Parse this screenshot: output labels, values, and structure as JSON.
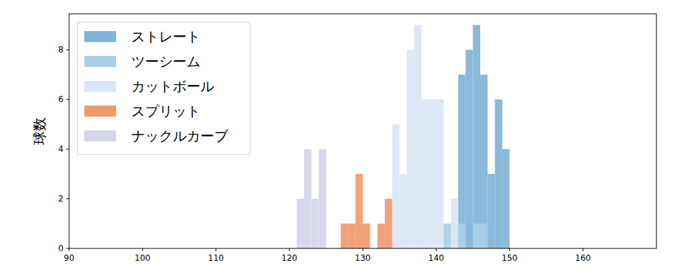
{
  "chart_data": {
    "type": "histogram",
    "y_label": "球数",
    "bins": [
      121,
      122,
      123,
      124,
      125,
      126,
      127,
      128,
      129,
      130,
      131,
      132,
      133,
      134,
      135,
      136,
      137,
      138,
      139,
      140,
      141,
      142,
      143,
      144,
      145,
      146,
      147,
      148,
      149,
      150
    ],
    "series": [
      {
        "name": "ストレート",
        "color": "#80b3d7",
        "values": [
          0,
          0,
          0,
          0,
          0,
          0,
          0,
          0,
          0,
          0,
          0,
          0,
          0,
          0,
          0,
          0,
          0,
          0,
          0,
          0,
          0,
          0,
          7,
          8,
          9,
          7,
          3,
          6,
          4
        ]
      },
      {
        "name": "ツーシーム",
        "color": "#a9cfe7",
        "values": [
          0,
          0,
          0,
          0,
          0,
          0,
          0,
          0,
          0,
          0,
          0,
          0,
          0,
          0,
          0,
          0,
          0,
          0,
          0,
          0,
          1,
          1,
          1,
          0,
          1,
          1,
          0,
          0,
          0
        ]
      },
      {
        "name": "カットボール",
        "color": "#dae6f3",
        "values": [
          0,
          0,
          0,
          0,
          0,
          0,
          0,
          0,
          0,
          0,
          0,
          0,
          0,
          5,
          3,
          8,
          9,
          6,
          6,
          6,
          0,
          2,
          0,
          0,
          0,
          0,
          0,
          0,
          0
        ]
      },
      {
        "name": "スプリット",
        "color": "#f09a6c",
        "values": [
          0,
          0,
          0,
          0,
          0,
          0,
          1,
          1,
          3,
          1,
          0,
          1,
          2,
          0,
          0,
          0,
          0,
          0,
          0,
          0,
          0,
          0,
          0,
          0,
          0,
          0,
          0,
          0,
          0
        ]
      },
      {
        "name": "ナックルカーブ",
        "color": "#d5d5e9",
        "values": [
          2,
          4,
          2,
          4,
          0,
          0,
          0,
          0,
          0,
          0,
          0,
          0,
          0,
          0,
          0,
          0,
          0,
          0,
          0,
          0,
          0,
          0,
          0,
          0,
          0,
          0,
          0,
          0,
          0
        ]
      }
    ],
    "xlim": [
      90,
      170
    ],
    "ylim": [
      0,
      9.45
    ],
    "xticks": [
      90,
      100,
      110,
      120,
      130,
      140,
      150,
      160
    ],
    "yticks": [
      0,
      2,
      4,
      6,
      8
    ],
    "grid": false,
    "legend": "upper-left"
  }
}
